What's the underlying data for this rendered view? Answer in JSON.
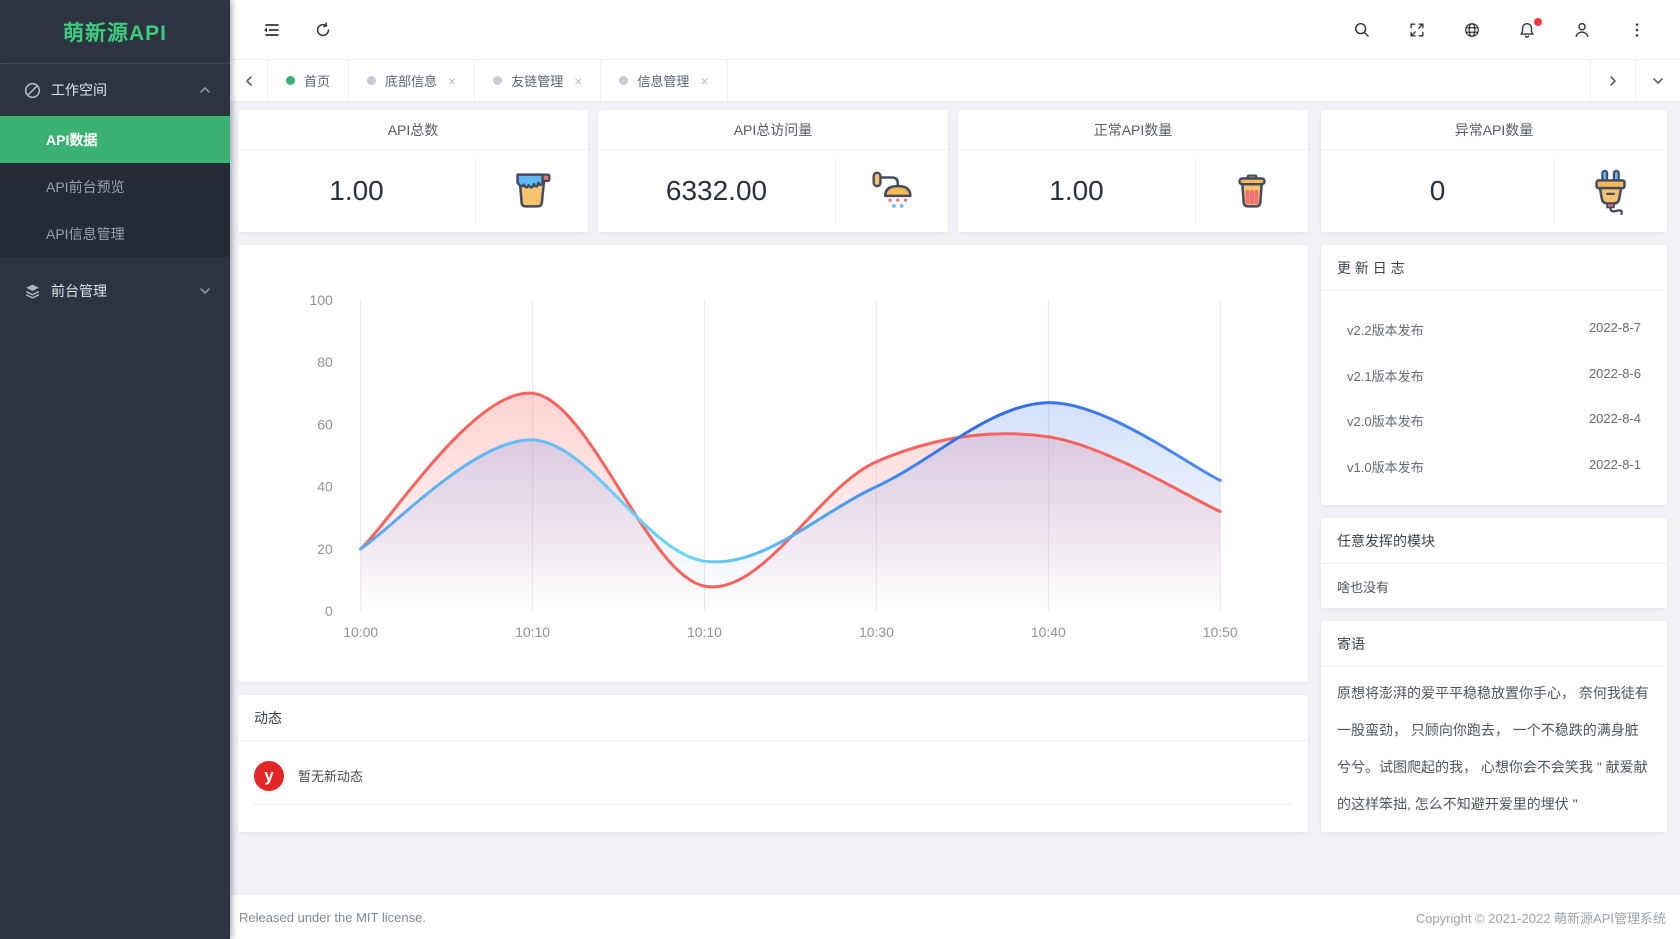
{
  "app": {
    "logo_text": "萌新源API"
  },
  "colors": {
    "primary_green": "#3bb271",
    "logo_green": "#3ecb7e",
    "sidebar_bg": "#2b3440",
    "submenu_bg": "#232c36",
    "content_bg": "#f0f2f5",
    "badge_red": "#f23c3c",
    "activity_logo_red": "#e32626"
  },
  "header": {
    "left_icons": [
      "menu-fold-icon",
      "refresh-icon"
    ],
    "right_icons": [
      "search-icon",
      "fullscreen-icon",
      "globe-icon",
      "bell-icon",
      "user-icon",
      "more-icon"
    ],
    "notification_badge": true
  },
  "sidebar": {
    "groups": [
      {
        "label": "工作空间",
        "icon": "dashboard-icon",
        "state": "expanded",
        "children": [
          {
            "label": "API数据",
            "active": true
          },
          {
            "label": "API前台预览",
            "active": false
          },
          {
            "label": "API信息管理",
            "active": false
          }
        ]
      },
      {
        "label": "前台管理",
        "icon": "layers-icon",
        "state": "collapsed",
        "children": []
      }
    ]
  },
  "tabs": {
    "items": [
      {
        "label": "首页",
        "active": true,
        "closable": false
      },
      {
        "label": "底部信息",
        "active": false,
        "closable": true
      },
      {
        "label": "友链管理",
        "active": false,
        "closable": true
      },
      {
        "label": "信息管理",
        "active": false,
        "closable": true
      }
    ],
    "close_glyph": "×"
  },
  "stats": {
    "cards": [
      {
        "title": "API总数",
        "value": "1.00",
        "icon": "paint-bucket-icon"
      },
      {
        "title": "API总访问量",
        "value": "6332.00",
        "icon": "shower-icon"
      },
      {
        "title": "正常API数量",
        "value": "1.00",
        "icon": "trash-icon"
      },
      {
        "title": "异常API数量",
        "value": "0",
        "icon": "plug-icon"
      }
    ]
  },
  "chart_data": {
    "type": "line",
    "categories": [
      "10:00",
      "10:10",
      "10:10",
      "10:30",
      "10:40",
      "10:50"
    ],
    "series": [
      {
        "name": "series-red",
        "color": "#f8625d",
        "fill": "rgba(248,98,93,0.28)",
        "values": [
          20,
          70,
          8,
          48,
          56,
          32
        ]
      },
      {
        "name": "series-blue",
        "color": "#4a86ef",
        "fill": "rgba(84,134,241,0.25)",
        "stroke_gradient": [
          "#5aa5f0",
          "#6ad6f7",
          "#2f6ae6",
          "#4f8cf0"
        ],
        "values": [
          20,
          55,
          16,
          40,
          67,
          42
        ]
      }
    ],
    "title": "",
    "xlabel": "",
    "ylabel": "",
    "ylim": [
      0,
      100
    ],
    "yticks": [
      0,
      20,
      40,
      60,
      80,
      100
    ],
    "grid": "vertical",
    "legend": "none",
    "smooth": true
  },
  "activity": {
    "title": "动态",
    "empty_text": "暂无新动态",
    "logo_letter": "y"
  },
  "changelog": {
    "title": "更 新 日 志",
    "items": [
      {
        "label": "v2.2版本发布",
        "date": "2022-8-7"
      },
      {
        "label": "v2.1版本发布",
        "date": "2022-8-6"
      },
      {
        "label": "v2.0版本发布",
        "date": "2022-8-4"
      },
      {
        "label": "v1.0版本发布",
        "date": "2022-8-1"
      }
    ]
  },
  "free_module": {
    "title": "任意发挥的模块",
    "content": "啥也没有"
  },
  "message": {
    "title": "寄语",
    "content": "原想将澎湃的爱平平稳稳放置你手心， 奈何我徒有一股蛮劲， 只顾向你跑去， 一个不稳跌的满身脏兮兮。试图爬起的我， 心想你会不会笑我 \" 献爱献的这样笨拙, 怎么不知避开爱里的埋伏 \""
  },
  "footer": {
    "left": "Released under the MIT license.",
    "right": "Copyright © 2021-2022 萌新源API管理系统"
  }
}
